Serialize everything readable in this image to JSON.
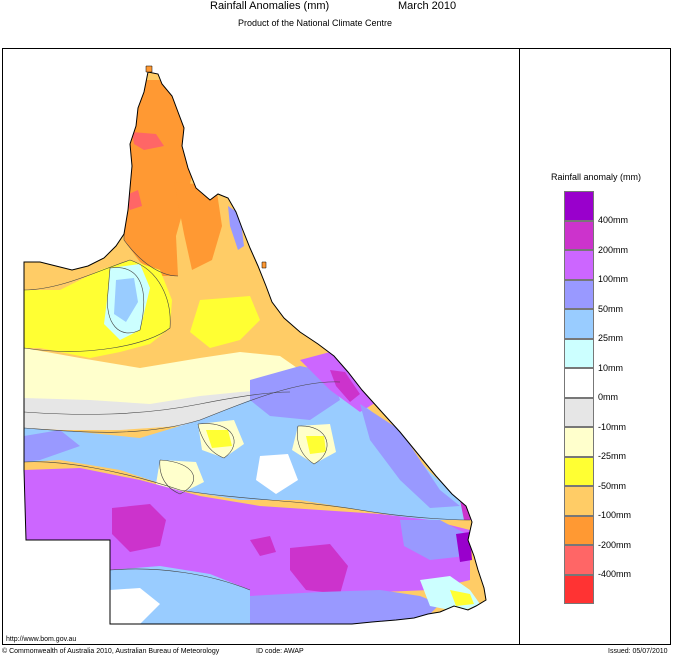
{
  "header": {
    "title": "Rainfall Anomalies (mm)",
    "period": "March 2010",
    "subtitle": "Product of the National Climate Centre"
  },
  "legend": {
    "title": "Rainfall anomaly (mm)",
    "labels": [
      "400mm",
      "200mm",
      "100mm",
      "50mm",
      "25mm",
      "10mm",
      "0mm",
      "-10mm",
      "-25mm",
      "-50mm",
      "-100mm",
      "-200mm",
      "-400mm"
    ],
    "colors": [
      "#9900cc",
      "#cc33cc",
      "#cc66ff",
      "#9999ff",
      "#99ccff",
      "#ccffff",
      "#ffffff",
      "#e6e6e6",
      "#ffffcc",
      "#ffff33",
      "#ffcc66",
      "#ff9933",
      "#ff6666",
      "#ff3333"
    ]
  },
  "footer": {
    "url": "http://www.bom.gov.au",
    "copyright": "© Commonwealth of Australia 2010, Australian Bureau of Meteorology",
    "id_code": "ID code: AWAP",
    "issued": "Issued: 05/07/2010"
  }
}
